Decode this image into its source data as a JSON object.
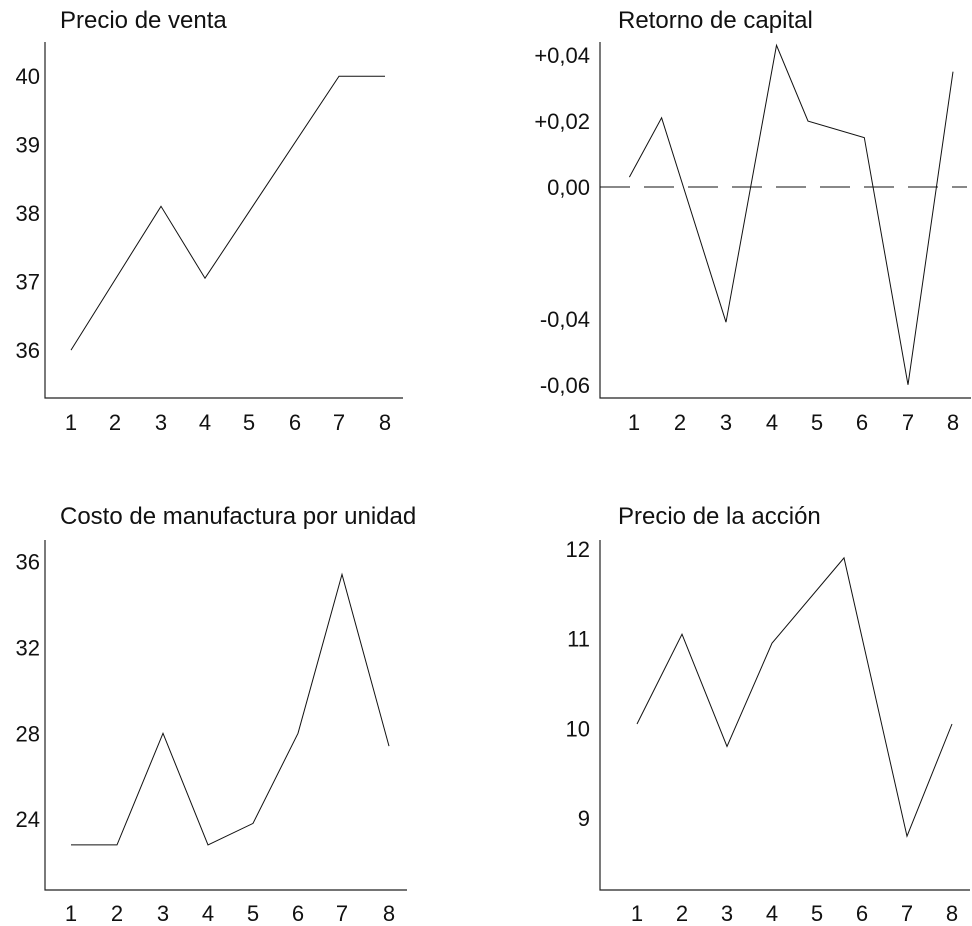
{
  "chart_data": [
    {
      "type": "line",
      "title": "Precio de venta",
      "xlabel": "",
      "ylabel": "",
      "x": [
        1,
        2,
        3,
        4,
        5,
        6,
        7,
        8
      ],
      "x_ticks": [
        "1",
        "2",
        "3",
        "4",
        "5",
        "6",
        "7",
        "8"
      ],
      "y_ticks": [
        "36",
        "37",
        "38",
        "39",
        "40"
      ],
      "y_tick_values": [
        36,
        37,
        38,
        39,
        40
      ],
      "ylim": [
        35.3,
        40.5
      ],
      "xlim": [
        0.4,
        8.4
      ],
      "series": [
        {
          "points": [
            [
              1,
              36.0
            ],
            [
              3,
              38.1
            ],
            [
              4,
              37.05
            ],
            [
              7,
              40.0
            ],
            [
              8,
              40.0
            ]
          ]
        }
      ],
      "grid": false
    },
    {
      "type": "line",
      "title": "Retorno de capital",
      "xlabel": "",
      "ylabel": "",
      "x": [
        1,
        2,
        3,
        4,
        5,
        6,
        7,
        8
      ],
      "x_ticks": [
        "1",
        "2",
        "3",
        "4",
        "5",
        "6",
        "7",
        "8"
      ],
      "y_ticks": [
        "+0,04",
        "+0,02",
        "0,00",
        "-0,04",
        "-0,06"
      ],
      "y_tick_values": [
        0.04,
        0.02,
        0.0,
        -0.04,
        -0.06
      ],
      "ylim": [
        -0.064,
        0.044
      ],
      "xlim": [
        0.4,
        8.4
      ],
      "reference_line": {
        "y": 0.0,
        "style": "dashed"
      },
      "series": [
        {
          "points": [
            [
              0.9,
              0.003
            ],
            [
              1.6,
              0.021
            ],
            [
              3.0,
              -0.041
            ],
            [
              4.1,
              0.043
            ],
            [
              4.8,
              0.02
            ],
            [
              6.05,
              0.015
            ],
            [
              7.0,
              -0.06
            ],
            [
              8.0,
              0.035
            ]
          ]
        }
      ],
      "grid": false
    },
    {
      "type": "line",
      "title": "Costo de manufactura por unidad",
      "xlabel": "",
      "ylabel": "",
      "x": [
        1,
        2,
        3,
        4,
        5,
        6,
        7,
        8
      ],
      "x_ticks": [
        "1",
        "2",
        "3",
        "4",
        "5",
        "6",
        "7",
        "8"
      ],
      "y_ticks": [
        "36",
        "32",
        "28",
        "24"
      ],
      "y_tick_values": [
        36,
        32,
        28,
        24
      ],
      "ylim": [
        20.7,
        37.0
      ],
      "xlim": [
        0.4,
        8.4
      ],
      "series": [
        {
          "points": [
            [
              1,
              22.8
            ],
            [
              2,
              22.8
            ],
            [
              3,
              28.0
            ],
            [
              4,
              22.8
            ],
            [
              5,
              23.8
            ],
            [
              6,
              28.0
            ],
            [
              7,
              35.4
            ],
            [
              8,
              27.4
            ]
          ]
        }
      ],
      "grid": false
    },
    {
      "type": "line",
      "title": "Precio de la acción",
      "xlabel": "",
      "ylabel": "",
      "x": [
        1,
        2,
        3,
        4,
        5,
        6,
        7,
        8
      ],
      "x_ticks": [
        "1",
        "2",
        "3",
        "4",
        "5",
        "6",
        "7",
        "8"
      ],
      "y_ticks": [
        "12",
        "11",
        "10",
        "9"
      ],
      "y_tick_values": [
        12,
        11,
        10,
        9
      ],
      "ylim": [
        8.2,
        12.1
      ],
      "xlim": [
        0.4,
        8.4
      ],
      "series": [
        {
          "points": [
            [
              1,
              10.05
            ],
            [
              2,
              11.05
            ],
            [
              3,
              9.8
            ],
            [
              4,
              10.95
            ],
            [
              5.6,
              11.9
            ],
            [
              7,
              8.8
            ],
            [
              8,
              10.05
            ]
          ]
        }
      ],
      "grid": false
    }
  ]
}
